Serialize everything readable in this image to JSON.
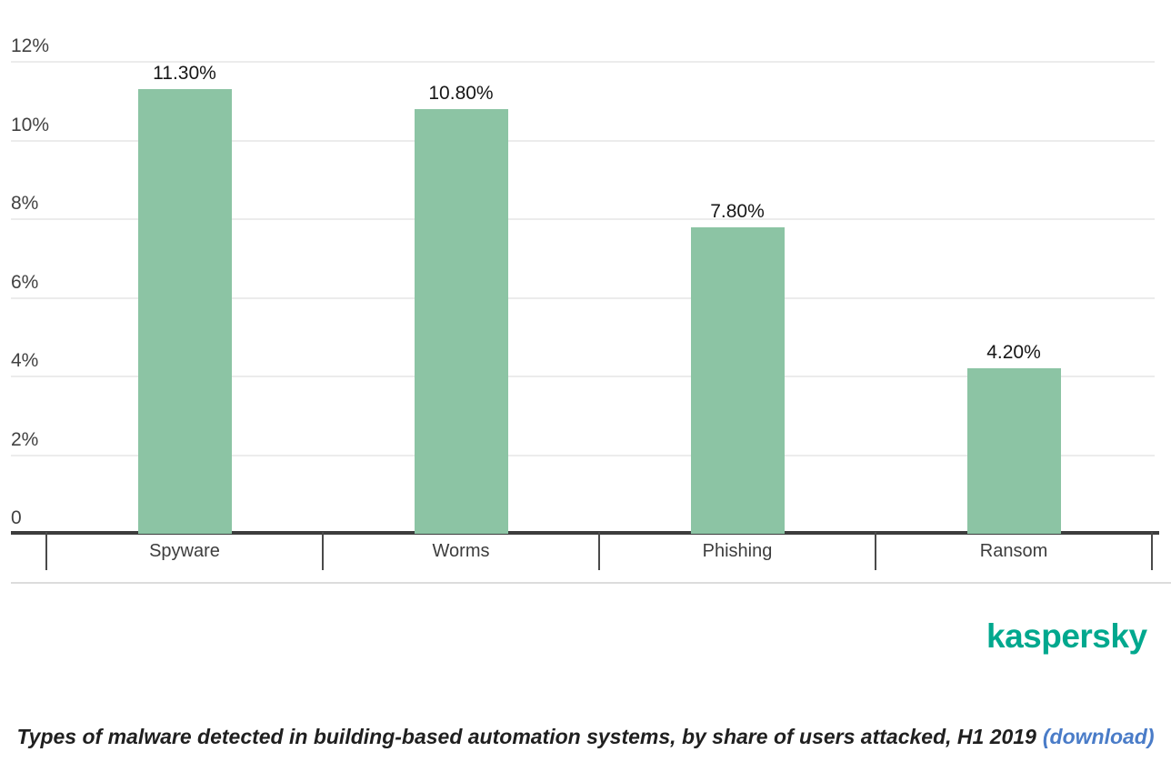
{
  "chart_data": {
    "type": "bar",
    "title": "Types of malware detected in building-based automation systems, by share of users attacked, H1 2019",
    "categories": [
      "Spyware",
      "Worms",
      "Phishing",
      "Ransom"
    ],
    "values": [
      11.3,
      10.8,
      7.8,
      4.2
    ],
    "value_labels": [
      "11.30%",
      "10.80%",
      "7.80%",
      "4.20%"
    ],
    "yticks": [
      {
        "value": 0,
        "label": "0"
      },
      {
        "value": 2,
        "label": "2%"
      },
      {
        "value": 4,
        "label": "4%"
      },
      {
        "value": 6,
        "label": "6%"
      },
      {
        "value": 8,
        "label": "8%"
      },
      {
        "value": 10,
        "label": "10%"
      },
      {
        "value": 12,
        "label": "12%"
      }
    ],
    "ylim": [
      0,
      12.6
    ],
    "grid": true,
    "legend": false,
    "bar_color": "#8cc4a4",
    "axis_color": "#3d3d3d",
    "gridline_color": "#ececec"
  },
  "branding": {
    "logo_text": "kaspersky",
    "logo_color": "#00a88e"
  },
  "caption": {
    "text": "Types of malware detected in building-based automation systems, by share of users attacked, H1 2019",
    "link_label": "(download)",
    "link_color": "#4a7cc8",
    "text_color": "#1f1f1f"
  }
}
